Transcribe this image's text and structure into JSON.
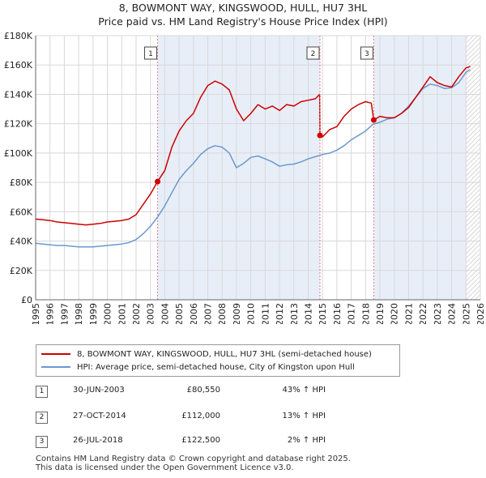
{
  "title_line1": "8, BOWMONT WAY, KINGSWOOD, HULL, HU7 3HL",
  "title_line2": "Price paid vs. HM Land Registry's House Price Index (HPI)",
  "legend": {
    "red_label": "8, BOWMONT WAY, KINGSWOOD, HULL, HU7 3HL (semi-detached house)",
    "blue_label": "HPI: Average price, semi-detached house, City of Kingston upon Hull"
  },
  "transactions": [
    {
      "num": "1",
      "date": "30-JUN-2003",
      "price": "£80,550",
      "hpi": "43% ↑ HPI"
    },
    {
      "num": "2",
      "date": "27-OCT-2014",
      "price": "£112,000",
      "hpi": "13% ↑ HPI"
    },
    {
      "num": "3",
      "date": "26-JUL-2018",
      "price": "£122,500",
      "hpi": "2% ↑ HPI"
    }
  ],
  "footer_line1": "Contains HM Land Registry data © Crown copyright and database right 2025.",
  "footer_line2": "This data is licensed under the Open Government Licence v3.0.",
  "colors": {
    "red": "#cc0000",
    "blue": "#6a99d0",
    "shade": "#e8eef8",
    "grid": "#d8d8d8",
    "marker_line": "#e08080"
  },
  "chart_data": {
    "type": "line",
    "title": "8, BOWMONT WAY, KINGSWOOD, HULL, HU7 3HL — Price paid vs. HM Land Registry's House Price Index (HPI)",
    "xlabel": "",
    "ylabel": "",
    "xlim": [
      1995,
      2026
    ],
    "ylim": [
      0,
      180000
    ],
    "x_ticks": [
      1995,
      1996,
      1997,
      1998,
      1999,
      2000,
      2001,
      2002,
      2003,
      2004,
      2005,
      2006,
      2007,
      2008,
      2009,
      2010,
      2011,
      2012,
      2013,
      2014,
      2015,
      2016,
      2017,
      2018,
      2019,
      2020,
      2021,
      2022,
      2023,
      2024,
      2025,
      2026
    ],
    "y_ticks": [
      0,
      20000,
      40000,
      60000,
      80000,
      100000,
      120000,
      140000,
      160000,
      180000
    ],
    "y_tick_labels": [
      "£0",
      "£20K",
      "£40K",
      "£60K",
      "£80K",
      "£100K",
      "£120K",
      "£140K",
      "£160K",
      "£180K"
    ],
    "grid": true,
    "shaded_regions": [
      [
        2003.5,
        2014.82
      ],
      [
        2018.57,
        2025.0
      ]
    ],
    "hatched_region_start": 2025.0,
    "series": [
      {
        "name": "8, BOWMONT WAY, KINGSWOOD, HULL, HU7 3HL (semi-detached house)",
        "color": "#cc0000",
        "x": [
          1995,
          1995.5,
          1996,
          1996.5,
          1997,
          1997.5,
          1998,
          1998.5,
          1999,
          1999.5,
          2000,
          2000.5,
          2001,
          2001.5,
          2002,
          2002.5,
          2003,
          2003.5,
          2004,
          2004.5,
          2005,
          2005.5,
          2006,
          2006.5,
          2007,
          2007.5,
          2008,
          2008.5,
          2009,
          2009.5,
          2010,
          2010.5,
          2011,
          2011.5,
          2012,
          2012.5,
          2013,
          2013.5,
          2014,
          2014.5,
          2014.8,
          2014.82,
          2015,
          2015.5,
          2016,
          2016.5,
          2017,
          2017.5,
          2018,
          2018.4,
          2018.57,
          2019,
          2019.5,
          2020,
          2020.5,
          2021,
          2021.5,
          2022,
          2022.5,
          2023,
          2023.5,
          2024,
          2024.5,
          2025,
          2025.3
        ],
        "y": [
          55000,
          54500,
          54000,
          53000,
          52500,
          52000,
          51500,
          51000,
          51500,
          52000,
          53000,
          53500,
          54000,
          55000,
          58000,
          65000,
          72000,
          80550,
          88000,
          104000,
          115000,
          122000,
          127000,
          138000,
          146000,
          149000,
          147000,
          143000,
          130000,
          122000,
          127000,
          133000,
          130000,
          132000,
          129000,
          133000,
          132000,
          135000,
          136000,
          137000,
          140000,
          112000,
          111000,
          116000,
          118000,
          125000,
          130000,
          133000,
          135000,
          134000,
          122500,
          125000,
          124000,
          124000,
          127000,
          131000,
          138000,
          145000,
          152000,
          148000,
          146000,
          145000,
          152000,
          158000,
          159000
        ]
      },
      {
        "name": "HPI: Average price, semi-detached house, City of Kingston upon Hull",
        "color": "#6a99d0",
        "x": [
          1995,
          1995.5,
          1996,
          1996.5,
          1997,
          1997.5,
          1998,
          1998.5,
          1999,
          1999.5,
          2000,
          2000.5,
          2001,
          2001.5,
          2002,
          2002.5,
          2003,
          2003.5,
          2004,
          2004.5,
          2005,
          2005.5,
          2006,
          2006.5,
          2007,
          2007.5,
          2008,
          2008.5,
          2009,
          2009.5,
          2010,
          2010.5,
          2011,
          2011.5,
          2012,
          2012.5,
          2013,
          2013.5,
          2014,
          2014.5,
          2015,
          2015.5,
          2016,
          2016.5,
          2017,
          2017.5,
          2018,
          2018.5,
          2019,
          2019.5,
          2020,
          2020.5,
          2021,
          2021.5,
          2022,
          2022.5,
          2023,
          2023.5,
          2024,
          2024.5,
          2025,
          2025.3
        ],
        "y": [
          38500,
          38000,
          37500,
          37000,
          37000,
          36500,
          36000,
          36000,
          36000,
          36500,
          37000,
          37500,
          38000,
          39000,
          41000,
          45000,
          50000,
          56300,
          64000,
          73000,
          82000,
          88000,
          93000,
          99000,
          103000,
          105000,
          104000,
          100000,
          90000,
          93000,
          97000,
          98000,
          96000,
          94000,
          91000,
          92000,
          92500,
          94000,
          96000,
          97500,
          99000,
          100000,
          102000,
          105000,
          109000,
          112000,
          115000,
          119500,
          121000,
          123000,
          124000,
          127000,
          132000,
          138000,
          144000,
          147000,
          146000,
          144000,
          144500,
          148000,
          155000,
          157000
        ]
      }
    ],
    "markers": [
      {
        "label": "1",
        "x": 2003.5,
        "y": 80550
      },
      {
        "label": "2",
        "x": 2014.82,
        "y": 112000
      },
      {
        "label": "3",
        "x": 2018.57,
        "y": 122500
      }
    ]
  }
}
